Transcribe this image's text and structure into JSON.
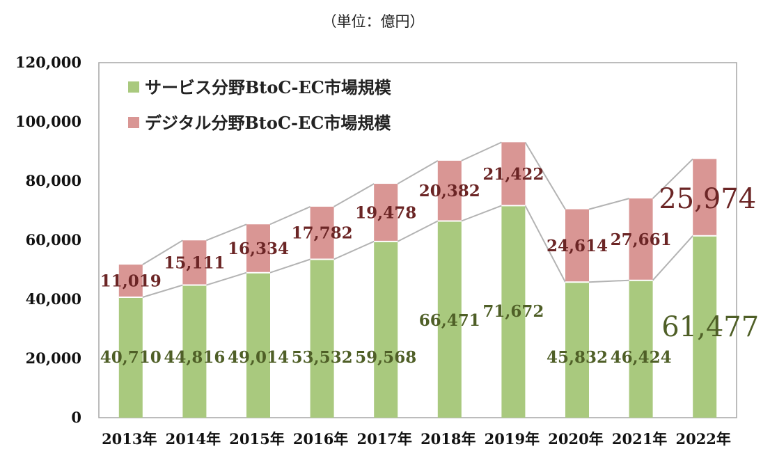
{
  "unit_label": "（単位：億円）",
  "chart_data": {
    "type": "bar",
    "stacked": true,
    "categories": [
      "2013年",
      "2014年",
      "2015年",
      "2016年",
      "2017年",
      "2018年",
      "2019年",
      "2020年",
      "2021年",
      "2022年"
    ],
    "series": [
      {
        "name": "サービス分野BtoC-EC市場規模",
        "color": "#a9c97e",
        "values": [
          40710,
          44816,
          49014,
          53532,
          59568,
          66471,
          71672,
          45832,
          46424,
          61477
        ]
      },
      {
        "name": "デジタル分野BtoC-EC市場規模",
        "color": "#d99694",
        "values": [
          11019,
          15111,
          16334,
          17782,
          19478,
          20382,
          21422,
          24614,
          27661,
          25974
        ]
      }
    ],
    "value_labels": {
      "services": [
        "40,710",
        "44,816",
        "49,014",
        "53,532",
        "59,568",
        "66,471",
        "71,672",
        "45,832",
        "46,424",
        "61,477"
      ],
      "digital": [
        "11,019",
        "15,111",
        "16,334",
        "17,782",
        "19,478",
        "20,382",
        "21,422",
        "24,614",
        "27,661",
        "25,974"
      ]
    },
    "ylim": [
      0,
      120000
    ],
    "yticks": [
      0,
      20000,
      40000,
      60000,
      80000,
      100000,
      120000
    ],
    "ytick_labels": [
      "0",
      "20,000",
      "40,000",
      "60,000",
      "80,000",
      "100,000",
      "120,000"
    ],
    "legend_position": "top-left",
    "grid": false,
    "connector_lines": true
  }
}
